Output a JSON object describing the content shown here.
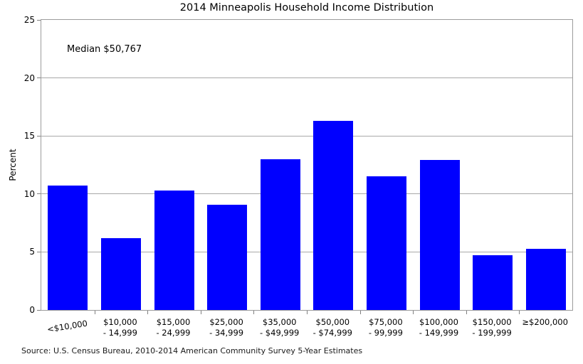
{
  "chart_data": {
    "type": "bar",
    "title": "2014 Minneapolis Household Income Distribution",
    "xlabel": "",
    "ylabel": "Percent",
    "annotation": "Median $50,767",
    "categories": [
      "<$10,000",
      "$10,000\n- 14,999",
      "$15,000\n- 24,999",
      "$25,000\n- 34,999",
      "$35,000\n- $49,999",
      "$50,000\n- $74,999",
      "$75,000\n- 99,999",
      "$100,000\n- 149,999",
      "$150,000\n- 199,999",
      "≥$200,000"
    ],
    "values": [
      10.7,
      6.2,
      10.3,
      9.1,
      13.0,
      16.3,
      11.5,
      12.9,
      4.7,
      5.3
    ],
    "ylim": [
      0,
      25
    ],
    "yticks": [
      0,
      5,
      10,
      15,
      20,
      25
    ],
    "grid": "horizontal",
    "legend_position": "none",
    "bar_color": "#0000ff",
    "grid_color": "#a8a8a8",
    "axis_color": "#9c9c9c",
    "tick_color": "#808080",
    "text_color": "#000000"
  },
  "source_note": "Source: U.S. Census Bureau, 2010-2014 American Community Survey 5-Year Estimates"
}
